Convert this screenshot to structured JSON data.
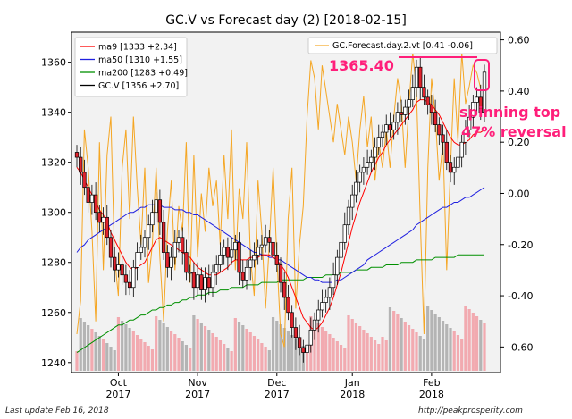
{
  "chart_data": {
    "type": "candlestick",
    "title": "GC.V vs Forecast day (2)  [2018-02-15]",
    "left_axis": {
      "ylim": [
        1236,
        1372
      ],
      "ticks": [
        1240,
        1260,
        1280,
        1300,
        1320,
        1340,
        1360
      ]
    },
    "right_axis": {
      "ylim": [
        -0.7,
        0.63
      ],
      "ticks": [
        "0.60",
        "0.40",
        "0.20",
        "0.00",
        "-0.20",
        "-0.40",
        "-0.60"
      ]
    },
    "x_ticks": [
      {
        "line1": "Oct",
        "line2": "2017",
        "idx": 11
      },
      {
        "line1": "Nov",
        "line2": "2017",
        "idx": 32
      },
      {
        "line1": "Dec",
        "line2": "2017",
        "idx": 53
      },
      {
        "line1": "Jan",
        "line2": "2018",
        "idx": 73
      },
      {
        "line1": "Feb",
        "line2": "2018",
        "idx": 94
      }
    ],
    "legend_left": [
      {
        "label": "ma9 [1333 +2.34]",
        "color": "#ff0000"
      },
      {
        "label": "ma50 [1310 +1.55]",
        "color": "#2020e0"
      },
      {
        "label": "ma200 [1283 +0.49]",
        "color": "#009000"
      },
      {
        "label": "GC.V [1356 +2.70]",
        "color": "#000000"
      }
    ],
    "legend_right": {
      "label": "GC.Forecast.day.2.vt [0.41 -0.06]",
      "color": "#f5a623"
    },
    "close": [
      1322,
      1316,
      1310,
      1304,
      1307,
      1300,
      1296,
      1298,
      1290,
      1282,
      1277,
      1279,
      1275,
      1272,
      1270,
      1278,
      1284,
      1286,
      1290,
      1295,
      1300,
      1305,
      1296,
      1284,
      1278,
      1282,
      1288,
      1290,
      1284,
      1276,
      1276,
      1270,
      1275,
      1269,
      1274,
      1270,
      1276,
      1279,
      1283,
      1286,
      1282,
      1285,
      1288,
      1276,
      1273,
      1278,
      1281,
      1283,
      1286,
      1287,
      1290,
      1288,
      1283,
      1279,
      1272,
      1266,
      1260,
      1254,
      1250,
      1246,
      1244,
      1247,
      1253,
      1257,
      1261,
      1264,
      1266,
      1270,
      1275,
      1282,
      1288,
      1295,
      1302,
      1307,
      1312,
      1316,
      1318,
      1320,
      1322,
      1326,
      1330,
      1332,
      1335,
      1333,
      1336,
      1340,
      1339,
      1342,
      1345,
      1350,
      1358,
      1350,
      1346,
      1343,
      1340,
      1335,
      1331,
      1328,
      1320,
      1316,
      1318,
      1322,
      1328,
      1333,
      1338,
      1344,
      1346,
      1340,
      1356
    ],
    "ma9": [
      1318,
      1316,
      1313,
      1310,
      1307,
      1304,
      1301,
      1299,
      1296,
      1292,
      1289,
      1286,
      1283,
      1280,
      1278,
      1277,
      1278,
      1279,
      1280,
      1283,
      1286,
      1289,
      1290,
      1289,
      1288,
      1287,
      1286,
      1285,
      1284,
      1283,
      1282,
      1280,
      1278,
      1277,
      1276,
      1275,
      1275,
      1275,
      1276,
      1277,
      1278,
      1280,
      1281,
      1281,
      1281,
      1281,
      1282,
      1282,
      1282,
      1283,
      1283,
      1283,
      1282,
      1281,
      1279,
      1277,
      1274,
      1270,
      1266,
      1262,
      1258,
      1256,
      1254,
      1253,
      1254,
      1256,
      1259,
      1262,
      1266,
      1271,
      1276,
      1282,
      1288,
      1294,
      1299,
      1304,
      1308,
      1312,
      1316,
      1319,
      1322,
      1324,
      1327,
      1329,
      1331,
      1333,
      1335,
      1337,
      1339,
      1341,
      1344,
      1345,
      1345,
      1344,
      1343,
      1341,
      1339,
      1336,
      1333,
      1330,
      1328,
      1327,
      1327,
      1328,
      1329,
      1331,
      1332,
      1332,
      1333
    ],
    "ma50": [
      1284,
      1286,
      1287,
      1289,
      1290,
      1291,
      1292,
      1293,
      1294,
      1295,
      1296,
      1297,
      1298,
      1299,
      1300,
      1300,
      1301,
      1302,
      1302,
      1303,
      1303,
      1303,
      1303,
      1302,
      1302,
      1302,
      1301,
      1301,
      1301,
      1300,
      1300,
      1299,
      1299,
      1298,
      1297,
      1296,
      1295,
      1294,
      1293,
      1292,
      1291,
      1290,
      1289,
      1288,
      1287,
      1286,
      1285,
      1284,
      1284,
      1283,
      1283,
      1282,
      1282,
      1281,
      1281,
      1280,
      1279,
      1278,
      1277,
      1276,
      1275,
      1274,
      1274,
      1273,
      1273,
      1272,
      1272,
      1272,
      1272,
      1273,
      1273,
      1274,
      1275,
      1276,
      1277,
      1278,
      1279,
      1281,
      1282,
      1283,
      1284,
      1285,
      1286,
      1287,
      1288,
      1289,
      1290,
      1291,
      1292,
      1293,
      1295,
      1296,
      1297,
      1298,
      1299,
      1300,
      1301,
      1302,
      1302,
      1303,
      1304,
      1304,
      1305,
      1306,
      1306,
      1307,
      1308,
      1309,
      1310
    ],
    "ma200": [
      1244,
      1245,
      1246,
      1247,
      1248,
      1249,
      1250,
      1251,
      1252,
      1253,
      1254,
      1255,
      1255,
      1256,
      1257,
      1257,
      1258,
      1259,
      1259,
      1260,
      1261,
      1261,
      1262,
      1262,
      1263,
      1263,
      1264,
      1264,
      1265,
      1265,
      1266,
      1266,
      1267,
      1267,
      1267,
      1268,
      1268,
      1268,
      1269,
      1269,
      1269,
      1270,
      1270,
      1270,
      1270,
      1271,
      1271,
      1271,
      1271,
      1272,
      1272,
      1272,
      1272,
      1272,
      1273,
      1273,
      1273,
      1273,
      1273,
      1273,
      1273,
      1274,
      1274,
      1274,
      1274,
      1274,
      1275,
      1275,
      1275,
      1275,
      1276,
      1276,
      1276,
      1276,
      1277,
      1277,
      1277,
      1277,
      1278,
      1278,
      1278,
      1278,
      1279,
      1279,
      1279,
      1279,
      1280,
      1280,
      1280,
      1280,
      1281,
      1281,
      1281,
      1281,
      1281,
      1282,
      1282,
      1282,
      1282,
      1282,
      1282,
      1283,
      1283,
      1283,
      1283,
      1283,
      1283,
      1283,
      1283
    ],
    "forecast": [
      -0.55,
      -0.42,
      0.25,
      0.1,
      -0.15,
      -0.5,
      0.2,
      -0.3,
      0.15,
      0.3,
      -0.25,
      -0.4,
      0.1,
      0.25,
      -0.1,
      0.3,
      0.02,
      -0.2,
      0.1,
      -0.35,
      -0.2,
      0.1,
      -0.25,
      -0.5,
      -0.15,
      0.05,
      -0.3,
      -0.05,
      -0.15,
      0.2,
      -0.35,
      0.15,
      -0.25,
      0.0,
      -0.15,
      0.1,
      -0.05,
      0.05,
      -0.2,
      0.15,
      -0.1,
      0.25,
      -0.3,
      0.02,
      -0.1,
      0.2,
      -0.25,
      -0.4,
      0.05,
      -0.15,
      -0.45,
      -0.2,
      0.1,
      -0.25,
      -0.55,
      -0.6,
      -0.1,
      0.1,
      -0.45,
      -0.2,
      -0.05,
      0.3,
      0.52,
      0.45,
      0.25,
      0.5,
      0.4,
      0.3,
      0.2,
      0.35,
      0.25,
      0.15,
      0.3,
      0.2,
      0.05,
      0.25,
      0.38,
      0.18,
      0.3,
      0.05,
      0.2,
      0.1,
      0.25,
      0.1,
      0.3,
      0.45,
      0.35,
      0.1,
      0.35,
      0.55,
      0.4,
      -0.1,
      -0.55,
      0.1,
      0.45,
      0.3,
      0.05,
      0.2,
      -0.3,
      0.1,
      0.45,
      0.2,
      0.55,
      0.35,
      0.42,
      0.5,
      0.47,
      0.41
    ],
    "annotations": {
      "price_label": "1365.40",
      "pattern_line1": "spinning top",
      "pattern_line2": "47% reversal"
    },
    "grid": false,
    "legend_placement": "top-left and top-right"
  },
  "footer": {
    "left": "Last update Feb 16, 2018",
    "right": "http://peakprosperity.com"
  }
}
